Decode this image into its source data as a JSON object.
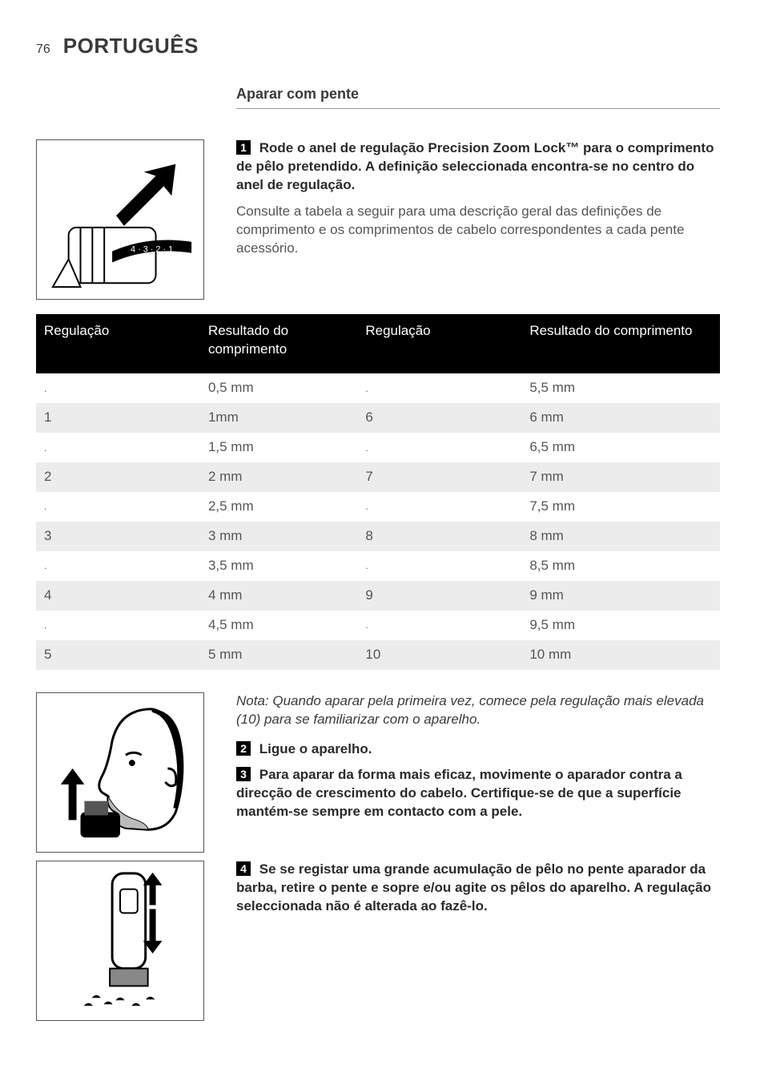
{
  "page": {
    "number": "76",
    "language_title": "PORTUGUÊS"
  },
  "section": {
    "heading": "Aparar com pente"
  },
  "steps": {
    "s1": {
      "num": "1",
      "bold": "Rode o anel de regulação Precision Zoom Lock™ para o comprimento de pêlo pretendido. A definição seleccionada encontra-se no centro do anel de regulação.",
      "body": "Consulte a tabela a seguir para uma descrição geral das definições de comprimento e os comprimentos de cabelo correspondentes a cada pente acessório."
    },
    "s2": {
      "num": "2",
      "bold": "Ligue o aparelho."
    },
    "s3": {
      "num": "3",
      "bold": "Para aparar da forma mais eficaz, movimente o aparador contra a direcção de crescimento do cabelo. Certifique-se de que a superfície mantém-se sempre em contacto com a pele."
    },
    "s4": {
      "num": "4",
      "bold": "Se se registar uma grande acumulação de pêlo no pente aparador da barba, retire o pente e sopre e/ou agite os pêlos do aparelho. A regulação seleccionada não é alterada ao fazê-lo."
    }
  },
  "note": "Nota: Quando aparar pela primeira vez, comece pela regulação mais elevada (10) para se familiarizar com o aparelho.",
  "table": {
    "headers": {
      "h1": "Regulação",
      "h2": "Resultado do comprimento",
      "h3": "Regulação",
      "h4": "Resultado do comprimento"
    },
    "rows": [
      {
        "c1": ".",
        "c2": "0,5 mm",
        "c3": ".",
        "c4": "5,5 mm"
      },
      {
        "c1": "1",
        "c2": "1mm",
        "c3": "6",
        "c4": "6 mm"
      },
      {
        "c1": ".",
        "c2": "1,5 mm",
        "c3": ".",
        "c4": "6,5 mm"
      },
      {
        "c1": "2",
        "c2": "2 mm",
        "c3": "7",
        "c4": "7 mm"
      },
      {
        "c1": ".",
        "c2": "2,5 mm",
        "c3": ".",
        "c4": "7,5 mm"
      },
      {
        "c1": "3",
        "c2": "3 mm",
        "c3": "8",
        "c4": "8 mm"
      },
      {
        "c1": ".",
        "c2": "3,5 mm",
        "c3": ".",
        "c4": "8,5 mm"
      },
      {
        "c1": "4",
        "c2": "4 mm",
        "c3": "9",
        "c4": "9 mm"
      },
      {
        "c1": ".",
        "c2": "4,5 mm",
        "c3": ".",
        "c4": "9,5 mm"
      },
      {
        "c1": "5",
        "c2": "5 mm",
        "c3": "10",
        "c4": "10 mm"
      }
    ],
    "col_widths_pct": [
      24,
      23,
      24,
      29
    ],
    "header_bg": "#000000",
    "header_fg": "#ffffff",
    "row_alt_bg": "#ececec",
    "cell_fontsize_pt": 13
  },
  "figures": {
    "fig1_label": "4 · 3 · 2 · 1"
  },
  "style": {
    "body_bg": "#ffffff",
    "text_color": "#3a3a3a",
    "muted_text": "#555555",
    "step_badge_bg": "#000000",
    "step_badge_fg": "#ffffff",
    "rule_color": "#9a9a9a",
    "base_fontsize_pt": 13,
    "title_fontsize_pt": 20
  }
}
